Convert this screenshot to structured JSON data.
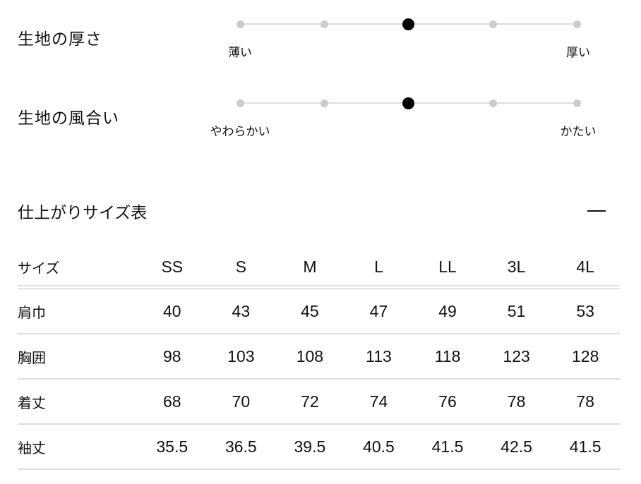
{
  "attributes": [
    {
      "title": "生地の厚さ",
      "min_label": "薄い",
      "max_label": "厚い",
      "levels": 5,
      "selected": 3
    },
    {
      "title": "生地の風合い",
      "min_label": "やわらかい",
      "max_label": "かたい",
      "levels": 5,
      "selected": 3
    }
  ],
  "size_table": {
    "title": "仕上がりサイズ表",
    "collapse_icon": "minus-icon",
    "headers": [
      "サイズ",
      "SS",
      "S",
      "M",
      "L",
      "LL",
      "3L",
      "4L"
    ],
    "rows": [
      [
        "肩巾",
        "40",
        "43",
        "45",
        "47",
        "49",
        "51",
        "53"
      ],
      [
        "胸囲",
        "98",
        "103",
        "108",
        "113",
        "118",
        "123",
        "128"
      ],
      [
        "着丈",
        "68",
        "70",
        "72",
        "74",
        "76",
        "78",
        "78"
      ],
      [
        "袖丈",
        "35.5",
        "36.5",
        "39.5",
        "40.5",
        "41.5",
        "42.5",
        "41.5"
      ]
    ]
  }
}
